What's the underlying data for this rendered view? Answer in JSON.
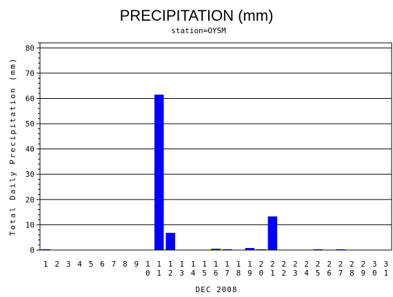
{
  "chart_data": {
    "type": "bar",
    "title": "PRECIPITATION (mm)",
    "subtitle": "station=OYSM",
    "xlabel": "DEC 2008",
    "ylabel": "Total Daily Precipitation (mm)",
    "ylim": [
      0,
      82
    ],
    "yticks": [
      0,
      10,
      20,
      30,
      40,
      50,
      60,
      70,
      80
    ],
    "grid": true,
    "bar_color": "#0000ff",
    "categories": [
      "1",
      "2",
      "3",
      "4",
      "5",
      "6",
      "7",
      "8",
      "9",
      "10",
      "11",
      "12",
      "13",
      "14",
      "15",
      "16",
      "17",
      "18",
      "19",
      "20",
      "21",
      "22",
      "23",
      "24",
      "25",
      "26",
      "27",
      "28",
      "29",
      "30",
      "31"
    ],
    "values": [
      0.3,
      0,
      0,
      0,
      0,
      0,
      0,
      0,
      0,
      0,
      61.5,
      6.8,
      0,
      0,
      0,
      0.5,
      0.3,
      0,
      0.8,
      0.3,
      13.3,
      0,
      0,
      0,
      0.3,
      0,
      0.3,
      0,
      0,
      0,
      0
    ]
  }
}
